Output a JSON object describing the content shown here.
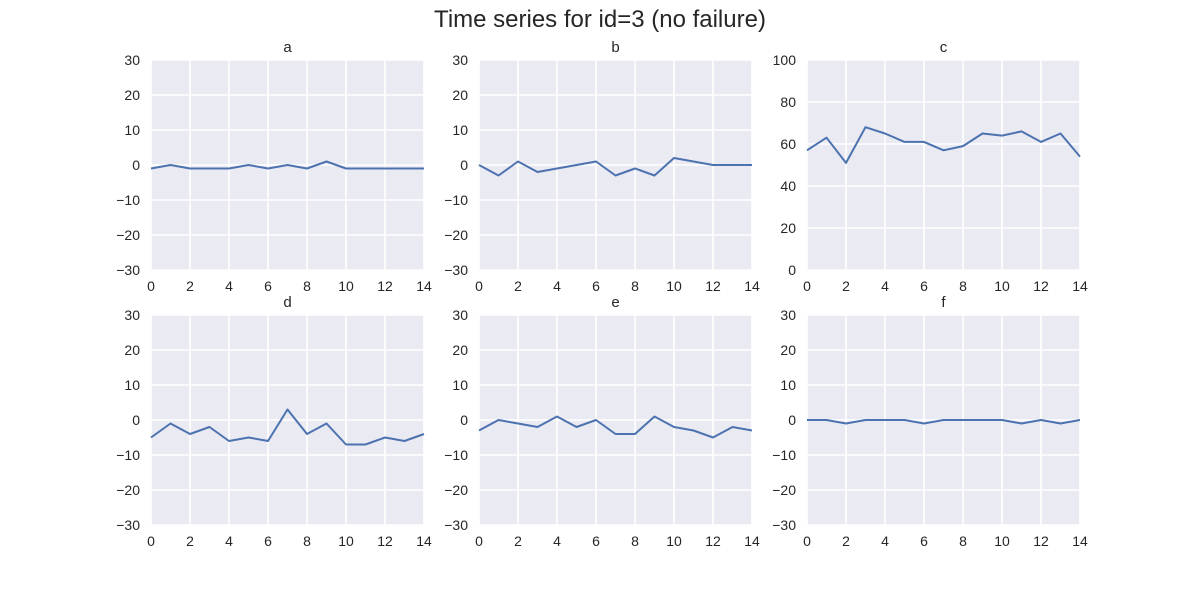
{
  "figure": {
    "title": "Time series for id=3 (no failure)",
    "colors": {
      "background": "#eaeaf2",
      "grid": "#ffffff",
      "line": "#4c72b0",
      "text": "#262626"
    }
  },
  "chart_data": [
    {
      "type": "line",
      "title": "a",
      "xlabel": "",
      "ylabel": "",
      "x": [
        0,
        1,
        2,
        3,
        4,
        5,
        6,
        7,
        8,
        9,
        10,
        11,
        12,
        13,
        14
      ],
      "xlim": [
        0,
        14
      ],
      "ylim": [
        -30,
        30
      ],
      "xticks": [
        0,
        2,
        4,
        6,
        8,
        10,
        12,
        14
      ],
      "yticks": [
        -30,
        -20,
        -10,
        0,
        10,
        20,
        30
      ],
      "ytick_labels": [
        "−30",
        "−20",
        "−10",
        "0",
        "10",
        "20",
        "30"
      ],
      "grid": true,
      "series": [
        {
          "values": [
            -1,
            0,
            -1,
            -1,
            -1,
            0,
            -1,
            0,
            -1,
            1,
            -1,
            -1,
            -1,
            -1,
            -1
          ]
        }
      ]
    },
    {
      "type": "line",
      "title": "b",
      "xlabel": "",
      "ylabel": "",
      "x": [
        0,
        1,
        2,
        3,
        4,
        5,
        6,
        7,
        8,
        9,
        10,
        11,
        12,
        13,
        14
      ],
      "xlim": [
        0,
        14
      ],
      "ylim": [
        -30,
        30
      ],
      "xticks": [
        0,
        2,
        4,
        6,
        8,
        10,
        12,
        14
      ],
      "yticks": [
        -30,
        -20,
        -10,
        0,
        10,
        20,
        30
      ],
      "ytick_labels": [
        "−30",
        "−20",
        "−10",
        "0",
        "10",
        "20",
        "30"
      ],
      "grid": true,
      "series": [
        {
          "values": [
            0,
            -3,
            1,
            -2,
            -1,
            0,
            1,
            -3,
            -1,
            -3,
            2,
            1,
            0,
            0,
            0
          ]
        }
      ]
    },
    {
      "type": "line",
      "title": "c",
      "xlabel": "",
      "ylabel": "",
      "x": [
        0,
        1,
        2,
        3,
        4,
        5,
        6,
        7,
        8,
        9,
        10,
        11,
        12,
        13,
        14
      ],
      "xlim": [
        0,
        14
      ],
      "ylim": [
        0,
        100
      ],
      "xticks": [
        0,
        2,
        4,
        6,
        8,
        10,
        12,
        14
      ],
      "yticks": [
        0,
        20,
        40,
        60,
        80,
        100
      ],
      "ytick_labels": [
        "0",
        "20",
        "40",
        "60",
        "80",
        "100"
      ],
      "grid": true,
      "series": [
        {
          "values": [
            57,
            63,
            51,
            68,
            65,
            61,
            61,
            57,
            59,
            65,
            64,
            66,
            61,
            65,
            54
          ]
        }
      ]
    },
    {
      "type": "line",
      "title": "d",
      "xlabel": "",
      "ylabel": "",
      "x": [
        0,
        1,
        2,
        3,
        4,
        5,
        6,
        7,
        8,
        9,
        10,
        11,
        12,
        13,
        14
      ],
      "xlim": [
        0,
        14
      ],
      "ylim": [
        -30,
        30
      ],
      "xticks": [
        0,
        2,
        4,
        6,
        8,
        10,
        12,
        14
      ],
      "yticks": [
        -30,
        -20,
        -10,
        0,
        10,
        20,
        30
      ],
      "ytick_labels": [
        "−30",
        "−20",
        "−10",
        "0",
        "10",
        "20",
        "30"
      ],
      "grid": true,
      "series": [
        {
          "values": [
            -5,
            -1,
            -4,
            -2,
            -6,
            -5,
            -6,
            3,
            -4,
            -1,
            -7,
            -7,
            -5,
            -6,
            -4
          ]
        }
      ]
    },
    {
      "type": "line",
      "title": "e",
      "xlabel": "",
      "ylabel": "",
      "x": [
        0,
        1,
        2,
        3,
        4,
        5,
        6,
        7,
        8,
        9,
        10,
        11,
        12,
        13,
        14
      ],
      "xlim": [
        0,
        14
      ],
      "ylim": [
        -30,
        30
      ],
      "xticks": [
        0,
        2,
        4,
        6,
        8,
        10,
        12,
        14
      ],
      "yticks": [
        -30,
        -20,
        -10,
        0,
        10,
        20,
        30
      ],
      "ytick_labels": [
        "−30",
        "−20",
        "−10",
        "0",
        "10",
        "20",
        "30"
      ],
      "grid": true,
      "series": [
        {
          "values": [
            -3,
            0,
            -1,
            -2,
            1,
            -2,
            0,
            -4,
            -4,
            1,
            -2,
            -3,
            -5,
            -2,
            -3
          ]
        }
      ]
    },
    {
      "type": "line",
      "title": "f",
      "xlabel": "",
      "ylabel": "",
      "x": [
        0,
        1,
        2,
        3,
        4,
        5,
        6,
        7,
        8,
        9,
        10,
        11,
        12,
        13,
        14
      ],
      "xlim": [
        0,
        14
      ],
      "ylim": [
        -30,
        30
      ],
      "xticks": [
        0,
        2,
        4,
        6,
        8,
        10,
        12,
        14
      ],
      "yticks": [
        -30,
        -20,
        -10,
        0,
        10,
        20,
        30
      ],
      "ytick_labels": [
        "−30",
        "−20",
        "−10",
        "0",
        "10",
        "20",
        "30"
      ],
      "grid": true,
      "series": [
        {
          "values": [
            0,
            0,
            -1,
            0,
            0,
            0,
            -1,
            0,
            0,
            0,
            0,
            -1,
            0,
            -1,
            0
          ]
        }
      ]
    }
  ]
}
